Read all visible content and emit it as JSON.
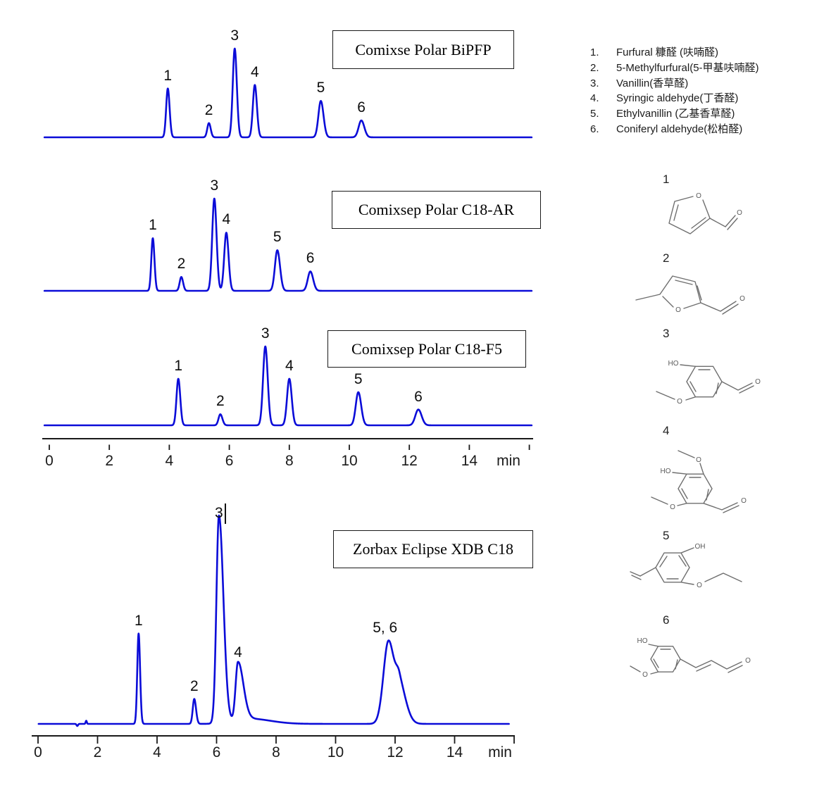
{
  "colors": {
    "trace": "#0b0cd8",
    "axis": "#1a1a1a",
    "box_border": "#1a1a1a",
    "structure_line": "#6e6e6e"
  },
  "legend": {
    "items": [
      {
        "num": "1.",
        "label": "Furfural 糠醛 (呋喃醛)"
      },
      {
        "num": "2.",
        "label": "5-Methylfurfural(5-甲基呋喃醛)"
      },
      {
        "num": "3.",
        "label": "Vanillin(香草醛)"
      },
      {
        "num": "4.",
        "label": "Syringic aldehyde(丁香醛)"
      },
      {
        "num": "5.",
        "label": "Ethylvanillin (乙基香草醛)"
      },
      {
        "num": "6.",
        "label": "Coniferyl aldehyde(松柏醛)"
      }
    ]
  },
  "structures": [
    {
      "num": "1",
      "name": "furfural",
      "atoms": [
        "O",
        "O"
      ]
    },
    {
      "num": "2",
      "name": "5-methylfurfural",
      "atoms": [
        "O",
        "O"
      ]
    },
    {
      "num": "3",
      "name": "vanillin",
      "atoms": [
        "HO",
        "O",
        "O"
      ]
    },
    {
      "num": "4",
      "name": "syringic-aldehyde",
      "atoms": [
        "O",
        "HO",
        "O",
        "O"
      ]
    },
    {
      "num": "5",
      "name": "ethylvanillin",
      "atoms": [
        "OH",
        "O"
      ]
    },
    {
      "num": "6",
      "name": "coniferyl-aldehyde",
      "atoms": [
        "HO",
        "O",
        "O"
      ]
    }
  ],
  "chart_data": [
    {
      "type": "line",
      "title": "Comixse Polar BiPFP",
      "x_unit": "min",
      "xlim": [
        0,
        16
      ],
      "x_ticks": [
        0,
        2,
        4,
        6,
        8,
        10,
        12,
        14
      ],
      "peaks": [
        {
          "label": "1",
          "t": 3.95,
          "h": 0.55,
          "sl": 0.055,
          "sr": 0.06
        },
        {
          "label": "2",
          "t": 5.32,
          "h": 0.16,
          "sl": 0.055,
          "sr": 0.06
        },
        {
          "label": "3",
          "t": 6.18,
          "h": 1.0,
          "sl": 0.065,
          "sr": 0.07
        },
        {
          "label": "4",
          "t": 6.85,
          "h": 0.59,
          "sl": 0.065,
          "sr": 0.07
        },
        {
          "label": "5",
          "t": 9.05,
          "h": 0.41,
          "sl": 0.08,
          "sr": 0.09
        },
        {
          "label": "6",
          "t": 10.4,
          "h": 0.19,
          "sl": 0.09,
          "sr": 0.1
        }
      ]
    },
    {
      "type": "line",
      "title": "Comixsep Polar C18-AR",
      "x_unit": "min",
      "xlim": [
        0,
        16
      ],
      "x_ticks": [
        0,
        2,
        4,
        6,
        8,
        10,
        12,
        14
      ],
      "peaks": [
        {
          "label": "1",
          "t": 3.45,
          "h": 0.57,
          "sl": 0.05,
          "sr": 0.055
        },
        {
          "label": "2",
          "t": 4.4,
          "h": 0.15,
          "sl": 0.055,
          "sr": 0.06
        },
        {
          "label": "3",
          "t": 5.5,
          "h": 1.0,
          "sl": 0.07,
          "sr": 0.075
        },
        {
          "label": "4",
          "t": 5.9,
          "h": 0.63,
          "sl": 0.07,
          "sr": 0.075
        },
        {
          "label": "5",
          "t": 7.6,
          "h": 0.44,
          "sl": 0.08,
          "sr": 0.09
        },
        {
          "label": "6",
          "t": 8.7,
          "h": 0.21,
          "sl": 0.085,
          "sr": 0.095
        }
      ]
    },
    {
      "type": "line",
      "title": "Comixsep Polar C18-F5",
      "x_unit": "min",
      "xlim": [
        0,
        16
      ],
      "x_ticks": [
        0,
        2,
        4,
        6,
        8,
        10,
        12,
        14
      ],
      "peaks": [
        {
          "label": "1",
          "t": 4.3,
          "h": 0.59,
          "sl": 0.06,
          "sr": 0.065
        },
        {
          "label": "2",
          "t": 5.7,
          "h": 0.14,
          "sl": 0.06,
          "sr": 0.07
        },
        {
          "label": "3",
          "t": 7.2,
          "h": 1.0,
          "sl": 0.075,
          "sr": 0.08
        },
        {
          "label": "4",
          "t": 8.0,
          "h": 0.59,
          "sl": 0.075,
          "sr": 0.08
        },
        {
          "label": "5",
          "t": 10.3,
          "h": 0.42,
          "sl": 0.085,
          "sr": 0.095
        },
        {
          "label": "6",
          "t": 12.3,
          "h": 0.2,
          "sl": 0.1,
          "sr": 0.11
        }
      ]
    },
    {
      "type": "line",
      "title": "Zorbax Eclipse XDB C18",
      "x_unit": "min",
      "xlim": [
        0,
        16
      ],
      "x_ticks": [
        0,
        2,
        4,
        6,
        8,
        10,
        12,
        14
      ],
      "peaks": [
        {
          "t": 1.32,
          "h": -0.01,
          "sl": 0.025,
          "sr": 0.025
        },
        {
          "t": 1.62,
          "h": 0.015,
          "sl": 0.02,
          "sr": 0.02
        },
        {
          "label": "1",
          "t": 3.38,
          "h": 0.435,
          "sl": 0.045,
          "sr": 0.05
        },
        {
          "label": "2",
          "t": 5.25,
          "h": 0.12,
          "sl": 0.05,
          "sr": 0.06
        },
        {
          "label": "3",
          "t": 6.08,
          "h": 1.0,
          "sl": 0.085,
          "sr": 0.15,
          "label_dy": 14
        },
        {
          "label": "4",
          "t": 6.72,
          "h": 0.28,
          "sl": 0.08,
          "sr": 0.18
        },
        {
          "t": 7.1,
          "h": 0.025,
          "sl": 0.5,
          "sr": 0.7
        },
        {
          "label": "5, 6",
          "t": 11.78,
          "h": 0.4,
          "sl": 0.17,
          "sr": 0.2,
          "label_dx": -5
        },
        {
          "t": 12.15,
          "h": 0.175,
          "sl": 0.12,
          "sr": 0.22
        }
      ]
    }
  ]
}
